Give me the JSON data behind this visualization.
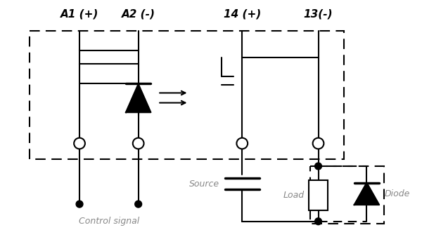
{
  "title_labels": [
    "A1 (+)",
    "A2 (-)",
    "14 (+)",
    "13(-)"
  ],
  "bg_color": "#ffffff",
  "text_color": "#000000",
  "gray_color": "#888888",
  "control_signal_label": "Control signal",
  "source_label": "Source",
  "load_label": "Load",
  "diode_label": "Diode",
  "title_fontsize": 11,
  "label_fontsize": 9
}
